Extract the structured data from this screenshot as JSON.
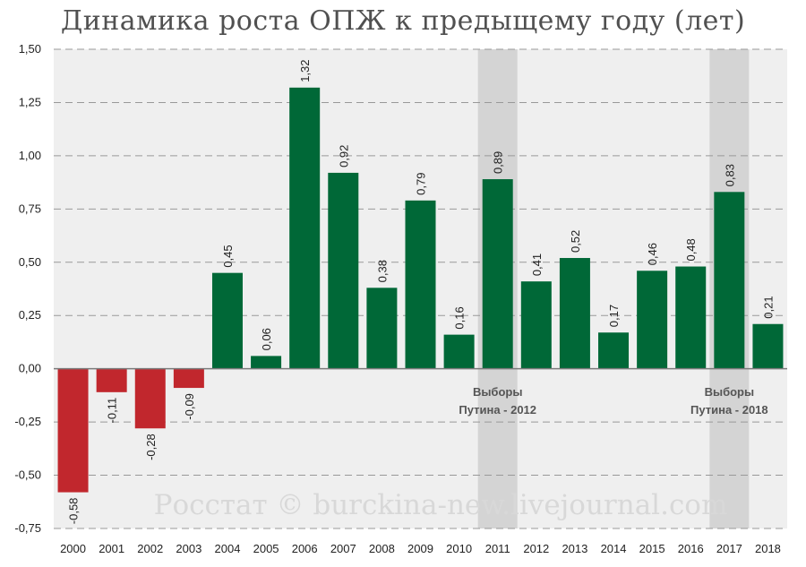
{
  "chart_data": {
    "type": "bar",
    "title": "Динамика роста ОПЖ к предыщему году (лет)",
    "xlabel": "",
    "ylabel": "",
    "categories": [
      "2000",
      "2001",
      "2002",
      "2003",
      "2004",
      "2005",
      "2006",
      "2007",
      "2008",
      "2009",
      "2010",
      "2011",
      "2012",
      "2013",
      "2014",
      "2015",
      "2016",
      "2017",
      "2018"
    ],
    "values": [
      -0.58,
      -0.11,
      -0.28,
      -0.09,
      0.45,
      0.06,
      1.32,
      0.92,
      0.38,
      0.79,
      0.16,
      0.89,
      0.41,
      0.52,
      0.17,
      0.46,
      0.48,
      0.83,
      0.21
    ],
    "value_labels": [
      "-0,58",
      "-0,11",
      "-0,28",
      "-0,09",
      "0,45",
      "0,06",
      "1,32",
      "0,92",
      "0,38",
      "0,79",
      "0,16",
      "0,89",
      "0,41",
      "0,52",
      "0,17",
      "0,46",
      "0,48",
      "0,83",
      "0,21"
    ],
    "ylim": [
      -0.75,
      1.5
    ],
    "yticks": [
      1.5,
      1.25,
      1.0,
      0.75,
      0.5,
      0.25,
      0.0,
      -0.25,
      -0.5,
      -0.75
    ],
    "ytick_labels": [
      "1,50",
      "1,25",
      "1,00",
      "0,75",
      "0,50",
      "0,25",
      "0,00",
      "-0,25",
      "-0,50",
      "-0,75"
    ],
    "grid": true,
    "colors": {
      "positive": "#006837",
      "negative": "#c1272d",
      "plot_bg": "#efefef",
      "highlight_band": "#d4d4d4",
      "grid": "#999999"
    },
    "highlight_years": [
      "2011",
      "2017"
    ],
    "annotations": [
      {
        "category": "2011",
        "lines": [
          "Выборы",
          "Путина - 2012"
        ]
      },
      {
        "category": "2017",
        "lines": [
          "Выборы",
          "Путина - 2018"
        ]
      }
    ],
    "watermark": "Росстат © burckina-new.livejournal.com"
  }
}
